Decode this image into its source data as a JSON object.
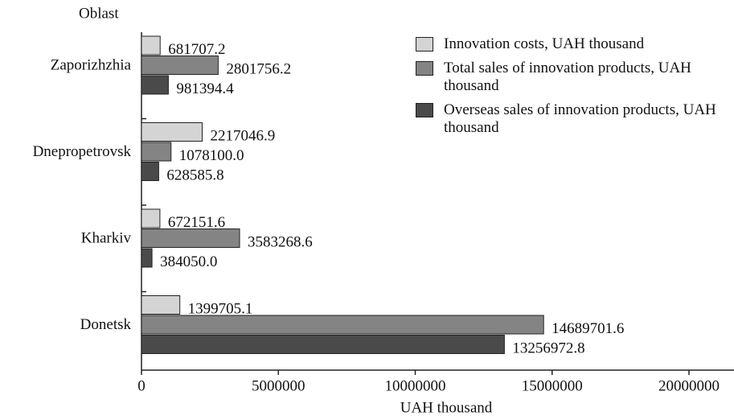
{
  "chart_data": {
    "type": "bar",
    "orientation": "horizontal",
    "categories": [
      "Zaporizhzhia",
      "Dnepropetrovsk",
      "Kharkiv",
      "Donetsk"
    ],
    "series": [
      {
        "name": "Innovation costs, UAH thousand",
        "color": "#d4d4d4",
        "values": [
          681707.2,
          2217046.9,
          672151.6,
          1399705.1
        ],
        "value_labels": [
          "681707.2",
          "2217046.9",
          "672151.6",
          "1399705.1"
        ]
      },
      {
        "name": "Total sales of innovation products, UAH thousand",
        "color": "#848484",
        "values": [
          2801756.2,
          1078100.0,
          3583268.6,
          14689701.6
        ],
        "value_labels": [
          "2801756.2",
          "1078100.0",
          "3583268.6",
          "14689701.6"
        ]
      },
      {
        "name": "Overseas sales of innovation products, UAH thousand",
        "color": "#4a4a4a",
        "values": [
          981394.4,
          628585.8,
          384050.0,
          13256972.8
        ],
        "value_labels": [
          "981394.4",
          "628585.8",
          "384050.0",
          "13256972.8"
        ]
      }
    ],
    "xlabel": "UAH thousand",
    "ylabel": "Oblast",
    "xlim": [
      0,
      20000000
    ],
    "xticks": [
      0,
      5000000,
      10000000,
      15000000,
      20000000
    ],
    "legend": "upper right"
  }
}
